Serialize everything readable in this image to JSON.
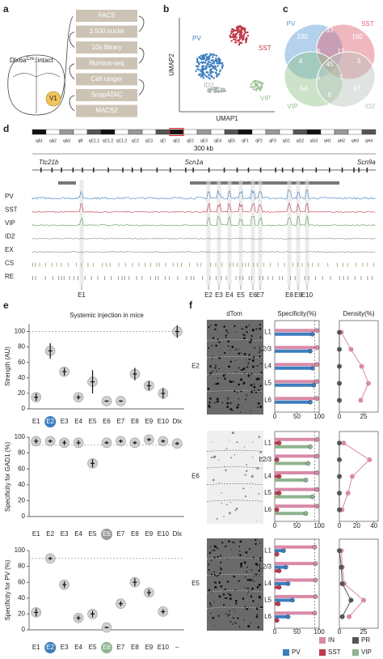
{
  "panel_labels": [
    "a",
    "b",
    "c",
    "d",
    "e",
    "f"
  ],
  "workflow": {
    "genotype": "Dlx6a",
    "superscript": "Cre",
    "suffix": "::intact",
    "region": "V1",
    "steps": [
      "FACS",
      "3,500 nuclei",
      "10x library",
      "Illumina-seq",
      "Cell ranger",
      "SnapATAC",
      "MACS2"
    ]
  },
  "umap": {
    "xlabel": "UMAP1",
    "ylabel": "UMAP2",
    "clusters": [
      {
        "name": "PV",
        "color": "#3c7ebf"
      },
      {
        "name": "SST",
        "color": "#c0394b"
      },
      {
        "name": "ID2",
        "color": "#a9b6b0"
      },
      {
        "name": "VIP",
        "color": "#9cc296"
      }
    ]
  },
  "venn": {
    "sets": [
      {
        "name": "PV",
        "color": "#5b9bd5"
      },
      {
        "name": "SST",
        "color": "#e06070"
      },
      {
        "name": "VIP",
        "color": "#8fc08a"
      },
      {
        "name": "ID2",
        "color": "#b8c4bd"
      }
    ],
    "counts": [
      230,
      33,
      160,
      4,
      6,
      17,
      3,
      45,
      5,
      1,
      54,
      6,
      97
    ]
  },
  "browser": {
    "bands": [
      "qA1",
      "qA2",
      "qA3",
      "qB",
      "qC1.1",
      "qC1.2",
      "qC1.2",
      "qC2",
      "qC3",
      "qD",
      "qE1",
      "qE2",
      "qE3",
      "qE4",
      "qE5",
      "qF1",
      "qF2",
      "qF3",
      "qG1",
      "qG2",
      "qG3",
      "qH1",
      "qH2",
      "qH3",
      "qH4"
    ],
    "scale": "300 kb",
    "genes": [
      "Ttc21b",
      "Scn1a",
      "Scn9a"
    ],
    "tracks": [
      {
        "name": "PV",
        "color": "#3c7ebf"
      },
      {
        "name": "SST",
        "color": "#c0394b"
      },
      {
        "name": "VIP",
        "color": "#5f9a5a"
      },
      {
        "name": "ID2",
        "color": "#8a948f"
      },
      {
        "name": "EX",
        "color": "#8a8a8a"
      },
      {
        "name": "CS",
        "color": "#b9a98a"
      },
      {
        "name": "RE",
        "color": "#999999"
      }
    ],
    "elements": [
      "E1",
      "E2",
      "E3",
      "E4",
      "E5",
      "E6",
      "E7",
      "E8",
      "E9",
      "E10"
    ]
  },
  "images": {
    "header": "dTom",
    "rows": [
      "E2",
      "E6",
      "E5"
    ]
  },
  "f_legend": {
    "columns": 2
  },
  "chart_data": [
    {
      "type": "dot",
      "title": "Systemic injection in mice",
      "ylabel": "Strength (AU)",
      "categories": [
        "E1",
        "E2",
        "E3",
        "E4",
        "E5",
        "E6",
        "E7",
        "E8",
        "E9",
        "E10",
        "Dlx"
      ],
      "values": [
        15,
        75,
        48,
        15,
        35,
        10,
        10,
        45,
        30,
        20,
        100
      ],
      "errors": [
        5,
        10,
        5,
        3,
        15,
        1,
        1,
        8,
        6,
        7,
        8
      ],
      "ylim": [
        0,
        110
      ],
      "yticks": [
        0,
        20,
        40,
        60,
        80,
        100
      ],
      "refline": 100,
      "highlights": [
        {
          "index": 1,
          "color": "#3c7ebf"
        }
      ]
    },
    {
      "type": "dot",
      "ylabel": "Specificity for GAD1 (%)",
      "categories": [
        "E1",
        "E2",
        "E3",
        "E4",
        "E5",
        "E6",
        "E7",
        "E8",
        "E9",
        "E10",
        "Dlx"
      ],
      "values": [
        95,
        95,
        93,
        93,
        67,
        93,
        95,
        93,
        97,
        95,
        92
      ],
      "errors": [
        3,
        2,
        3,
        3,
        5,
        2,
        2,
        2,
        2,
        2,
        2
      ],
      "ylim": [
        0,
        100
      ],
      "yticks": [
        0,
        20,
        40,
        60,
        80,
        100
      ],
      "refline": 90,
      "highlights": [
        {
          "index": 5,
          "color": "#9a9a9a"
        }
      ]
    },
    {
      "type": "dot",
      "ylabel": "Specificity for PV (%)",
      "categories": [
        "E1",
        "E2",
        "E3",
        "E4",
        "E5",
        "E6",
        "E7",
        "E8",
        "E9",
        "E10",
        "–"
      ],
      "values": [
        22,
        90,
        57,
        15,
        20,
        3,
        33,
        60,
        47,
        23,
        null
      ],
      "errors": [
        5,
        2,
        4,
        3,
        4,
        1,
        3,
        5,
        4,
        3,
        null
      ],
      "ylim": [
        0,
        100
      ],
      "yticks": [
        0,
        20,
        40,
        60,
        80,
        100
      ],
      "refline": 90,
      "highlights": [
        {
          "index": 1,
          "color": "#3c7ebf"
        },
        {
          "index": 5,
          "color": "#8fb48f"
        }
      ]
    },
    {
      "type": "hbar",
      "title": "Specificity(%)",
      "categories": [
        "L1",
        "L2/3",
        "L4",
        "L5",
        "L6"
      ],
      "series": [
        {
          "name": "IN",
          "color": "#d98aa8",
          "values": [
            95,
            95,
            95,
            95,
            95
          ]
        },
        {
          "name": "PV",
          "color": "#3c7ebf",
          "values": [
            85,
            80,
            85,
            88,
            80
          ]
        }
      ],
      "xlim": [
        0,
        100
      ],
      "xticks": [
        0,
        50,
        100
      ],
      "refline": 90
    },
    {
      "type": "dotline",
      "title": "Density(%)",
      "series": [
        {
          "name": "IN",
          "color": "#d98aa8",
          "values": [
            2,
            12,
            23,
            30,
            22
          ]
        },
        {
          "name": "PR",
          "color": "#555555",
          "values": [
            0,
            0,
            0,
            0,
            0
          ]
        }
      ],
      "xlim": [
        0,
        40
      ],
      "xticks": [
        0,
        25
      ]
    },
    {
      "type": "hbar",
      "categories": [
        "L1",
        "L2/3",
        "L4",
        "L5",
        "L6"
      ],
      "series": [
        {
          "name": "IN",
          "color": "#d98aa8",
          "values": [
            95,
            95,
            95,
            95,
            95
          ]
        },
        {
          "name": "SST",
          "color": "#c0394b",
          "values": [
            10,
            5,
            10,
            10,
            5
          ]
        },
        {
          "name": "VIP",
          "color": "#8fb48f",
          "values": [
            80,
            75,
            70,
            85,
            70
          ]
        }
      ],
      "xlim": [
        0,
        100
      ],
      "xticks": [
        0,
        50,
        100
      ],
      "refline": 90
    },
    {
      "type": "dotline",
      "series": [
        {
          "name": "IN",
          "color": "#d98aa8",
          "values": [
            5,
            35,
            15,
            10,
            3
          ]
        },
        {
          "name": "PR",
          "color": "#555555",
          "values": [
            0,
            0,
            0,
            0,
            0
          ]
        }
      ],
      "xlim": [
        0,
        45
      ],
      "xticks": [
        0,
        20,
        40
      ]
    },
    {
      "type": "hbar",
      "categories": [
        "L1",
        "L2/3",
        "L4",
        "L5",
        "L6"
      ],
      "series": [
        {
          "name": "IN",
          "color": "#d98aa8",
          "values": [
            90,
            92,
            92,
            92,
            90
          ]
        },
        {
          "name": "PV",
          "color": "#3c7ebf",
          "values": [
            20,
            25,
            30,
            40,
            30
          ]
        },
        {
          "name": "SST",
          "color": "#c0394b",
          "values": [
            5,
            10,
            10,
            8,
            5
          ]
        }
      ],
      "xlim": [
        0,
        100
      ],
      "xticks": [
        0,
        50,
        100
      ],
      "refline": 90
    },
    {
      "type": "dotline",
      "series": [
        {
          "name": "IN",
          "color": "#d98aa8",
          "values": [
            2,
            3,
            5,
            25,
            10
          ]
        },
        {
          "name": "PR",
          "color": "#555555",
          "values": [
            0,
            2,
            3,
            12,
            3
          ]
        }
      ],
      "xlim": [
        0,
        40
      ],
      "xticks": [
        0,
        25
      ]
    }
  ]
}
